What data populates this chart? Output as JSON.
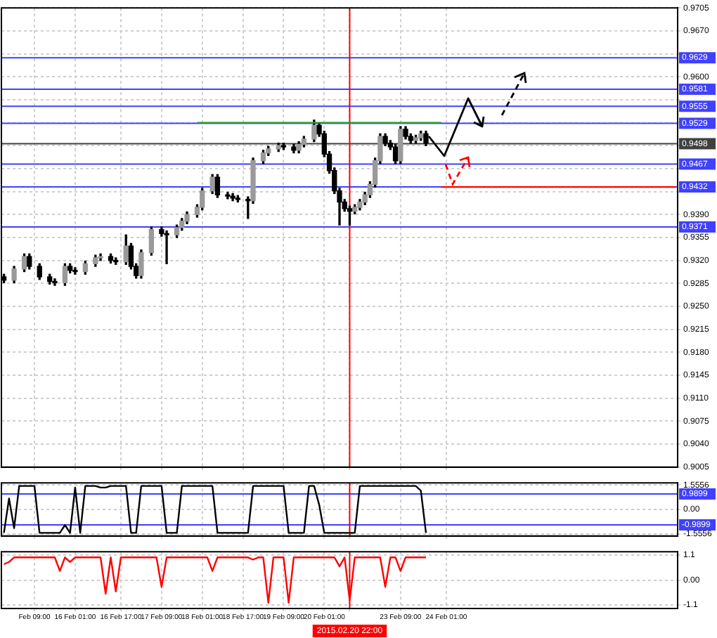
{
  "chart_data": [
    {
      "type": "candlestick",
      "ylim": [
        0.9005,
        0.9705
      ],
      "grid": true,
      "tick_labels": "y",
      "categories": [
        null,
        null,
        null,
        null,
        null,
        null,
        "Feb 09:00",
        null,
        null,
        null,
        null,
        null,
        null,
        null,
        "16 Feb 01:00",
        null,
        null,
        null,
        null,
        null,
        null,
        null,
        null,
        "16 Feb 17:00",
        null,
        null,
        null,
        null,
        null,
        null,
        null,
        "17 Feb 09:00",
        null,
        null,
        null,
        null,
        null,
        null,
        null,
        "18 Feb 01:00",
        null,
        null,
        null,
        null,
        null,
        null,
        null,
        "18 Feb 17:00",
        null,
        null,
        null,
        null,
        null,
        null,
        null,
        "19 Feb 09:00",
        null,
        null,
        null,
        null,
        null,
        null,
        null,
        "20 Feb 01:00",
        null,
        null,
        null,
        null,
        "2015.02.20 22:00",
        null,
        null,
        null,
        null,
        null,
        null,
        null,
        null,
        null,
        "23 Feb 09:00",
        null,
        null,
        null,
        null,
        null,
        null,
        null,
        null,
        "24 Feb 01:00",
        null,
        null,
        null,
        null,
        null,
        null,
        null,
        null,
        null,
        null,
        null,
        null,
        null,
        null,
        null,
        null,
        null,
        null,
        null,
        null,
        null,
        null,
        null,
        null,
        null,
        null,
        null,
        null,
        null,
        null,
        null,
        null,
        null,
        null,
        null,
        null,
        null,
        null,
        null,
        null,
        null,
        null,
        null,
        null,
        null
      ],
      "yticks": [
        0.9005,
        {
          "value": 0.904,
          "label": "0.9040"
        },
        0.9075,
        {
          "value": 0.911,
          "label": "0.9110"
        },
        0.9145,
        {
          "value": 0.918,
          "label": "0.9180"
        },
        0.9215,
        {
          "value": 0.925,
          "label": "0.9250"
        },
        0.9285,
        {
          "value": 0.932,
          "label": "0.9320"
        },
        0.9355,
        {
          "value": 0.939,
          "label": "0.9390"
        },
        {
          "value": 0.9425,
          "label": null
        },
        {
          "value": 0.946,
          "label": null
        },
        {
          "value": 0.9495,
          "label": null
        },
        {
          "value": 0.953,
          "label": null
        },
        {
          "value": 0.9565,
          "label": null
        },
        {
          "value": 0.96,
          "label": "0.9600"
        },
        {
          "value": 0.9635,
          "label": null
        },
        {
          "value": 0.967,
          "label": "0.9670"
        },
        0.9705
      ],
      "ref_lines": [
        {
          "axis": "y",
          "value": 0.9629,
          "label": "0.9629",
          "color": "#4040ff"
        },
        {
          "axis": "y",
          "value": 0.9581,
          "label": "0.9581",
          "color": "#4040ff"
        },
        {
          "axis": "y",
          "value": 0.9555,
          "label": "0.9555",
          "color": "#4040ff"
        },
        {
          "axis": "y",
          "value": 0.9529,
          "label": "0.9529",
          "color": "#4040ff"
        },
        {
          "axis": "y",
          "value": 0.9498,
          "label": "0.9498",
          "color": "#404040"
        },
        {
          "axis": "y",
          "value": 0.9467,
          "label": "0.9467",
          "color": "#4040ff"
        },
        {
          "axis": "y",
          "value": 0.9432,
          "label": "0.9432",
          "color": "#4040ff"
        },
        {
          "axis": "y",
          "value": 0.9371,
          "label": "0.9371",
          "color": "#4040ff"
        },
        {
          "axis": "x",
          "value": "2015.02.20 22:00",
          "color": "#ff0000"
        }
      ],
      "series": [
        {
          "type": "candlestick",
          "color": "#000000",
          "colors": [
            "#000000",
            null,
            "#9a9a9a",
            null,
            "#9a9a9a",
            "#000000",
            null,
            "#000000",
            null,
            "#000000",
            "#000000",
            null,
            "#9a9a9a",
            "#000000",
            "#000000",
            null,
            "#9a9a9a",
            null,
            "#9a9a9a",
            "#9a9a9a",
            null,
            "#000000",
            "#000000",
            null,
            "#9a9a9a",
            "#000000",
            "#000000",
            "#9a9a9a",
            null,
            "#9a9a9a",
            null,
            "#000000",
            "#000000",
            null,
            "#9a9a9a",
            "#9a9a9a",
            "#9a9a9a",
            null,
            "#9a9a9a",
            "#9a9a9a",
            null,
            "#9a9a9a",
            "#000000",
            null,
            "#000000",
            "#000000",
            "#000000",
            null,
            "#000000",
            "#9a9a9a",
            null,
            "#9a9a9a",
            "#9a9a9a",
            null,
            "#9a9a9a",
            "#000000",
            null,
            "#000000",
            "#9a9a9a",
            "#9a9a9a",
            null,
            "#9a9a9a",
            "#000000",
            "#000000",
            "#000000",
            "#000000",
            "#000000",
            "#000000",
            "#000000",
            "#9a9a9a",
            "#9a9a9a",
            "#9a9a9a",
            "#9a9a9a",
            "#9a9a9a",
            "#9a9a9a",
            "#000000",
            "#000000",
            "#000000",
            "#9a9a9a",
            "#000000",
            "#000000",
            "#9a9a9a",
            "#9a9a9a",
            "#000000",
            null,
            null,
            null,
            null,
            null,
            null,
            null,
            null,
            null,
            null,
            null,
            null,
            null,
            null,
            null,
            null,
            null,
            null,
            null,
            null,
            null,
            null,
            null,
            null,
            null,
            null,
            null,
            null,
            null,
            null,
            null,
            null,
            null,
            null,
            null,
            null,
            null,
            null,
            null,
            null,
            null,
            null,
            null,
            null,
            null,
            null,
            null,
            null,
            null
          ],
          "ohlc": [
            [
              0.9295,
              0.9299,
              0.9286,
              0.929
            ],
            null,
            [
              0.929,
              0.9311,
              0.9286,
              0.9307
            ],
            null,
            [
              0.9307,
              0.933,
              0.9303,
              0.9326
            ],
            [
              0.9326,
              0.933,
              0.9307,
              0.9311
            ],
            null,
            [
              0.9311,
              0.9315,
              0.9291,
              0.9295
            ],
            null,
            [
              0.9295,
              0.9299,
              0.9284,
              0.9288
            ],
            [
              0.9288,
              0.9292,
              0.9282,
              0.9286
            ],
            null,
            [
              0.9286,
              0.9315,
              0.9282,
              0.9311
            ],
            [
              0.9311,
              0.9315,
              0.9301,
              0.9305
            ],
            [
              0.9305,
              0.9309,
              0.9299,
              0.9303
            ],
            null,
            [
              0.9303,
              0.9319,
              0.9299,
              0.9315
            ],
            null,
            [
              0.9315,
              0.9328,
              0.9311,
              0.9324
            ],
            [
              0.9324,
              0.933,
              0.932,
              0.9326
            ],
            null,
            [
              0.9326,
              0.933,
              0.9316,
              0.932
            ],
            [
              0.932,
              0.9324,
              0.9314,
              0.9318
            ],
            null,
            [
              0.9318,
              0.9359,
              0.9314,
              0.9342
            ],
            [
              0.9342,
              0.9346,
              0.9307,
              0.9311
            ],
            [
              0.9311,
              0.9315,
              0.9293,
              0.9297
            ],
            [
              0.9297,
              0.9336,
              0.9293,
              0.9332
            ],
            null,
            [
              0.9332,
              0.9371,
              0.9328,
              0.9367
            ],
            null,
            [
              0.9367,
              0.9371,
              0.9357,
              0.9361
            ],
            [
              0.9361,
              0.9365,
              0.9315,
              0.9359
            ],
            null,
            [
              0.9359,
              0.9374,
              0.9355,
              0.937
            ],
            [
              0.937,
              0.9384,
              0.9366,
              0.938
            ],
            [
              0.938,
              0.9394,
              0.9376,
              0.939
            ],
            null,
            [
              0.939,
              0.9405,
              0.9386,
              0.9401
            ],
            [
              0.9401,
              0.943,
              0.9397,
              0.9426
            ],
            null,
            [
              0.9426,
              0.9451,
              0.9422,
              0.9447
            ],
            [
              0.9447,
              0.9451,
              0.9416,
              0.942
            ],
            null,
            [
              0.942,
              0.9424,
              0.9414,
              0.9418
            ],
            [
              0.9418,
              0.9422,
              0.9411,
              0.9415
            ],
            [
              0.9415,
              0.9419,
              0.9409,
              0.9413
            ],
            null,
            [
              0.9413,
              0.9417,
              0.9384,
              0.9411
            ],
            [
              0.9411,
              0.9476,
              0.9407,
              0.9472
            ],
            null,
            [
              0.9472,
              0.9488,
              0.9468,
              0.9484
            ],
            [
              0.9484,
              0.9494,
              0.948,
              0.949
            ],
            null,
            [
              0.949,
              0.9499,
              0.9486,
              0.9495
            ],
            [
              0.9495,
              0.9499,
              0.9489,
              0.9493
            ],
            null,
            [
              0.9493,
              0.9497,
              0.9484,
              0.9488
            ],
            [
              0.9488,
              0.9501,
              0.9484,
              0.9497
            ],
            [
              0.9497,
              0.9509,
              0.9493,
              0.9505
            ],
            null,
            [
              0.9505,
              0.9534,
              0.9501,
              0.9526
            ],
            [
              0.9526,
              0.953,
              0.9509,
              0.9513
            ],
            [
              0.9513,
              0.9517,
              0.9478,
              0.9482
            ],
            [
              0.9482,
              0.9486,
              0.9453,
              0.9457
            ],
            [
              0.9457,
              0.9461,
              0.9422,
              0.9426
            ],
            [
              0.9426,
              0.943,
              0.9374,
              0.9409
            ],
            [
              0.9409,
              0.9413,
              0.9395,
              0.9399
            ],
            [
              0.9399,
              0.9403,
              0.9374,
              0.9395
            ],
            [
              0.9395,
              0.9405,
              0.9391,
              0.9401
            ],
            [
              0.9401,
              0.9413,
              0.9397,
              0.9409
            ],
            [
              0.9409,
              0.9424,
              0.9405,
              0.942
            ],
            [
              0.942,
              0.944,
              0.9416,
              0.9436
            ],
            [
              0.9436,
              0.9476,
              0.9432,
              0.9472
            ],
            [
              0.9472,
              0.9513,
              0.9468,
              0.9509
            ],
            [
              0.9509,
              0.9513,
              0.9495,
              0.9499
            ],
            [
              0.9499,
              0.9503,
              0.9489,
              0.9493
            ],
            [
              0.9493,
              0.9497,
              0.9468,
              0.9472
            ],
            [
              0.9472,
              0.9524,
              0.9468,
              0.952
            ],
            [
              0.952,
              0.9524,
              0.9505,
              0.9509
            ],
            [
              0.9509,
              0.9513,
              0.9499,
              0.9503
            ],
            [
              0.9503,
              0.9511,
              0.9499,
              0.9507
            ],
            [
              0.9507,
              0.9517,
              0.9503,
              0.9513
            ],
            [
              0.9513,
              0.9517,
              0.9495,
              0.9499
            ],
            null,
            null,
            null,
            null,
            null,
            null,
            null,
            null,
            null,
            null,
            null,
            null,
            null,
            null,
            null,
            null,
            null,
            null,
            null,
            null,
            null,
            null,
            null,
            null,
            null,
            null,
            null,
            null,
            null,
            null,
            null,
            null,
            null,
            null,
            null,
            null,
            null,
            null,
            null,
            null,
            null,
            null,
            null,
            null,
            null,
            null,
            null,
            null,
            null
          ]
        },
        {
          "type": "line",
          "color": "#2e9e2e",
          "values": [
            null,
            null,
            null,
            null,
            null,
            null,
            null,
            null,
            null,
            null,
            null,
            null,
            null,
            null,
            null,
            null,
            null,
            null,
            null,
            null,
            null,
            null,
            null,
            null,
            null,
            null,
            null,
            null,
            null,
            null,
            null,
            null,
            null,
            null,
            null,
            null,
            null,
            null,
            0.953,
            0.953,
            0.953,
            0.953,
            0.953,
            0.953,
            0.953,
            0.953,
            0.953,
            0.953,
            0.953,
            0.953,
            0.953,
            0.953,
            0.953,
            0.953,
            0.953,
            0.953,
            0.953,
            0.953,
            0.953,
            0.953,
            0.953,
            0.953,
            0.953,
            0.953,
            0.953,
            0.953,
            0.953,
            0.953,
            0.953,
            0.953,
            0.953,
            0.953,
            0.953,
            0.953,
            0.953,
            0.953,
            0.953,
            0.953,
            0.953,
            0.953,
            0.953,
            0.953,
            0.953,
            0.953,
            0.953,
            0.953,
            0.953,
            null,
            null,
            null,
            null,
            null,
            null,
            null,
            null,
            null,
            null,
            null,
            null,
            null,
            null,
            null,
            null,
            null,
            null,
            null,
            null,
            null,
            null,
            null,
            null,
            null,
            null,
            null,
            null,
            null,
            null,
            null,
            null,
            null,
            null,
            null,
            null,
            null,
            null,
            null,
            null,
            null,
            null,
            null,
            null,
            null,
            null
          ]
        },
        {
          "type": "line",
          "color": "#ff0000",
          "values": [
            null,
            null,
            null,
            null,
            null,
            null,
            null,
            null,
            null,
            null,
            null,
            null,
            null,
            null,
            null,
            null,
            null,
            null,
            null,
            null,
            null,
            null,
            null,
            null,
            null,
            null,
            null,
            null,
            null,
            null,
            null,
            null,
            null,
            null,
            null,
            null,
            null,
            null,
            null,
            null,
            null,
            null,
            null,
            null,
            null,
            null,
            null,
            null,
            null,
            null,
            null,
            null,
            null,
            null,
            null,
            null,
            null,
            null,
            null,
            null,
            null,
            null,
            null,
            null,
            null,
            null,
            null,
            null,
            null,
            null,
            null,
            null,
            null,
            null,
            null,
            null,
            null,
            null,
            null,
            null,
            null,
            null,
            null,
            null,
            null,
            null,
            0.9432,
            0.9432,
            0.9432,
            0.9432,
            0.9432,
            0.9432,
            0.9432,
            0.9432,
            0.9432,
            0.9432,
            0.9432,
            0.9432,
            0.9432,
            0.9432,
            0.9432,
            0.9432,
            0.9432,
            0.9432,
            0.9432,
            0.9432,
            0.9432,
            0.9432,
            0.9432,
            0.9432,
            0.9432,
            0.9432,
            0.9432,
            0.9432,
            0.9432,
            0.9432,
            0.9432,
            0.9432,
            0.9432,
            0.9432,
            0.9432,
            0.9432,
            0.9432,
            0.9432,
            0.9432,
            0.9432,
            0.9432,
            0.9432,
            0.9432,
            0.9432,
            0.9432,
            0.9432,
            0.9432
          ]
        }
      ]
    },
    {
      "type": "line",
      "ylim": [
        -1.7,
        1.7
      ],
      "grid": true,
      "tick_labels": "y",
      "categories": [
        null,
        null,
        null,
        null,
        null,
        null,
        "Feb 09:00",
        null,
        null,
        null,
        null,
        null,
        null,
        null,
        "16 Feb 01:00",
        null,
        null,
        null,
        null,
        null,
        null,
        null,
        null,
        "16 Feb 17:00",
        null,
        null,
        null,
        null,
        null,
        null,
        null,
        "17 Feb 09:00",
        null,
        null,
        null,
        null,
        null,
        null,
        null,
        "18 Feb 01:00",
        null,
        null,
        null,
        null,
        null,
        null,
        null,
        "18 Feb 17:00",
        null,
        null,
        null,
        null,
        null,
        null,
        null,
        "19 Feb 09:00",
        null,
        null,
        null,
        null,
        null,
        null,
        null,
        "20 Feb 01:00",
        null,
        null,
        null,
        null,
        "2015.02.20 22:00",
        null,
        null,
        null,
        null,
        null,
        null,
        null,
        null,
        null,
        "23 Feb 09:00",
        null,
        null,
        null,
        null,
        null,
        null,
        null,
        null,
        "24 Feb 01:00",
        null,
        null,
        null,
        null,
        null,
        null,
        null,
        null,
        null,
        null,
        null,
        null,
        null,
        null,
        null,
        null,
        null,
        null,
        null,
        null,
        null,
        null,
        null,
        null,
        null,
        null,
        null,
        null,
        null,
        null,
        null,
        null,
        null,
        null,
        null,
        null,
        null,
        null,
        null,
        null,
        null,
        null,
        null,
        null,
        null
      ],
      "yticks": [
        1.5556,
        {
          "value": 0,
          "label": "0.00"
        },
        -1.5556
      ],
      "ref_lines": [
        {
          "axis": "y",
          "value": 0.9899,
          "label": "0.9899",
          "color": "#4040ff"
        },
        {
          "axis": "y",
          "value": -0.9899,
          "label": "-0.9899",
          "color": "#4040ff"
        },
        {
          "axis": "x",
          "value": "2015.02.20 22:00",
          "color": "#ff0000"
        }
      ],
      "series": [
        {
          "color": "#000000",
          "values": [
            -1.5,
            0.7,
            -1.2,
            1.5,
            1.5,
            1.5,
            1.5,
            -1.5,
            -1.5,
            -1.5,
            -1.5,
            -1.5,
            -1.0,
            -1.5,
            1.4,
            -1.5,
            1.5,
            1.5,
            1.5,
            1.4,
            1.4,
            1.5,
            1.5,
            1.5,
            1.5,
            -1.5,
            -1.5,
            1.5,
            1.5,
            1.5,
            1.5,
            1.5,
            -1.5,
            -1.5,
            -1.5,
            1.5,
            1.5,
            1.5,
            1.5,
            1.5,
            1.5,
            1.5,
            -1.5,
            -1.5,
            -1.5,
            -1.5,
            -1.5,
            -1.5,
            -1.5,
            1.5,
            1.5,
            1.5,
            1.5,
            1.5,
            1.5,
            1.5,
            -1.5,
            -1.5,
            -1.5,
            -1.5,
            1.5,
            1.5,
            0.3,
            -1.5,
            -1.5,
            -1.5,
            -1.5,
            -1.5,
            -1.5,
            -1.5,
            1.5,
            1.5,
            1.5,
            1.5,
            1.5,
            1.5,
            1.5,
            1.5,
            1.5,
            1.5,
            1.5,
            1.5,
            1.2,
            -1.5,
            null,
            null,
            null,
            null,
            null,
            null,
            null,
            null,
            null,
            null,
            null,
            null,
            null,
            null,
            null,
            null,
            null,
            null,
            null,
            null,
            null,
            null,
            null,
            null,
            null,
            null,
            null,
            null,
            null,
            null,
            null,
            null,
            null,
            null,
            null,
            null,
            null,
            null,
            null,
            null,
            null,
            null,
            null,
            null,
            null,
            null,
            null,
            null,
            null
          ]
        }
      ]
    },
    {
      "type": "line",
      "ylim": [
        -1.25,
        1.25
      ],
      "grid": true,
      "categories": [
        null,
        null,
        null,
        null,
        null,
        null,
        "Feb 09:00",
        null,
        null,
        null,
        null,
        null,
        null,
        null,
        "16 Feb 01:00",
        null,
        null,
        null,
        null,
        null,
        null,
        null,
        null,
        "16 Feb 17:00",
        null,
        null,
        null,
        null,
        null,
        null,
        null,
        "17 Feb 09:00",
        null,
        null,
        null,
        null,
        null,
        null,
        null,
        "18 Feb 01:00",
        null,
        null,
        null,
        null,
        null,
        null,
        null,
        "18 Feb 17:00",
        null,
        null,
        null,
        null,
        null,
        null,
        null,
        "19 Feb 09:00",
        null,
        null,
        null,
        null,
        null,
        null,
        null,
        "20 Feb 01:00",
        null,
        null,
        null,
        null,
        "2015.02.20 22:00",
        null,
        null,
        null,
        null,
        null,
        null,
        null,
        null,
        null,
        "23 Feb 09:00",
        null,
        null,
        null,
        null,
        null,
        null,
        null,
        null,
        "24 Feb 01:00",
        null,
        null,
        null,
        null,
        null,
        null,
        null,
        null,
        null,
        null,
        null,
        null,
        null,
        null,
        null,
        null,
        null,
        null,
        null,
        null,
        null,
        null,
        null,
        null,
        null,
        null,
        null,
        null,
        null,
        null,
        null,
        null,
        null,
        null,
        null,
        null,
        null,
        null,
        null,
        null,
        null,
        null,
        null,
        null,
        null
      ],
      "yticks": [
        1.1,
        {
          "value": 0,
          "label": "0.00"
        },
        -1.1
      ],
      "ref_lines": [
        {
          "axis": "x",
          "value": "2015.02.20 22:00",
          "color": "#ff0000"
        }
      ],
      "series": [
        {
          "color": "#ff0000",
          "values": [
            0.7,
            0.8,
            1.0,
            1.0,
            1.0,
            1.0,
            1.0,
            1.0,
            1.0,
            1.0,
            1.0,
            0.4,
            1.0,
            0.8,
            1.0,
            1.0,
            1.0,
            1.0,
            1.0,
            1.0,
            -0.6,
            1.0,
            -0.5,
            1.0,
            1.0,
            1.0,
            1.0,
            1.0,
            1.0,
            1.0,
            1.0,
            -0.3,
            1.0,
            1.0,
            1.0,
            1.0,
            1.0,
            1.0,
            1.0,
            1.0,
            1.0,
            0.4,
            1.0,
            1.0,
            1.0,
            1.0,
            1.0,
            1.0,
            1.0,
            0.9,
            1.0,
            1.0,
            -1.0,
            1.0,
            1.0,
            1.0,
            -1.0,
            1.0,
            1.0,
            1.0,
            1.0,
            1.0,
            1.0,
            1.0,
            1.0,
            1.0,
            0.6,
            1.0,
            -0.9,
            1.0,
            1.0,
            1.0,
            1.0,
            1.0,
            1.0,
            -0.3,
            1.0,
            1.0,
            0.4,
            1.0,
            1.0,
            1.0,
            1.0,
            1.0,
            null,
            null,
            null,
            null,
            null,
            null,
            null,
            null,
            null,
            null,
            null,
            null,
            null,
            null,
            null,
            null,
            null,
            null,
            null,
            null,
            null,
            null,
            null,
            null,
            null,
            null,
            null,
            null,
            null,
            null,
            null,
            null,
            null,
            null,
            null,
            null,
            null,
            null,
            null,
            null,
            null,
            null,
            null,
            null,
            null,
            null,
            null,
            null,
            null
          ]
        }
      ]
    }
  ]
}
